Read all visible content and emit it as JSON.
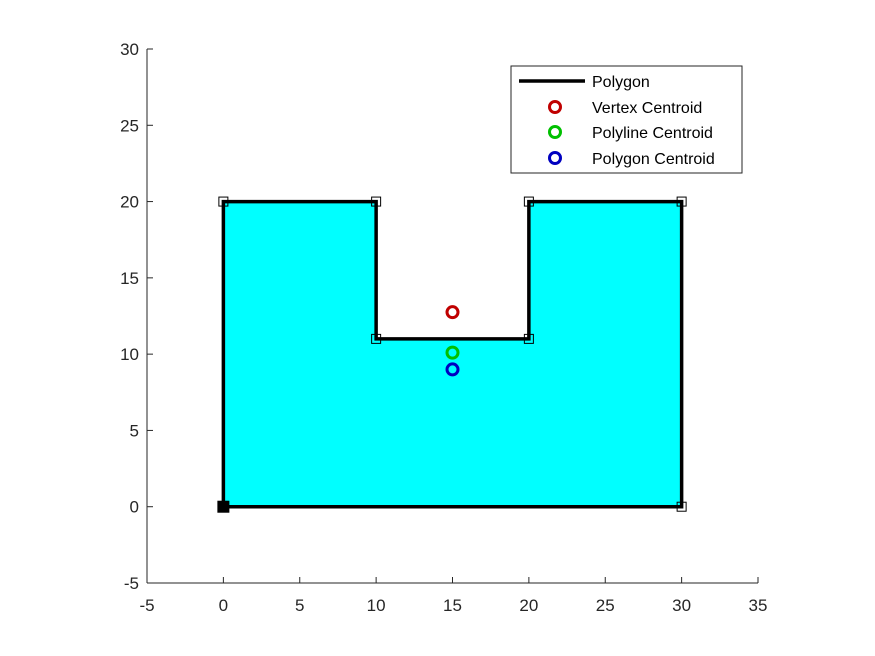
{
  "chart_data": {
    "type": "line",
    "title": "",
    "xlabel": "",
    "ylabel": "",
    "xlim": [
      -5,
      35
    ],
    "ylim": [
      -5,
      30
    ],
    "xticks": [
      -5,
      0,
      5,
      10,
      15,
      20,
      25,
      30,
      35
    ],
    "yticks": [
      -5,
      0,
      5,
      10,
      15,
      20,
      25,
      30
    ],
    "xtick_labels": [
      "-5",
      "0",
      "5",
      "10",
      "15",
      "20",
      "25",
      "30",
      "35"
    ],
    "ytick_labels": [
      "-5",
      "0",
      "5",
      "10",
      "15",
      "20",
      "25",
      "30"
    ],
    "grid": false,
    "legend_position": "top-right",
    "polygon": {
      "name": "Polygon",
      "fill_color": "#00ffff",
      "line_color": "#000000",
      "x": [
        0,
        0,
        10,
        10,
        20,
        20,
        30,
        30,
        0
      ],
      "y": [
        0,
        20,
        20,
        11,
        11,
        20,
        20,
        0,
        0
      ],
      "start_vertex": [
        0,
        0
      ]
    },
    "series": [
      {
        "name": "Vertex Centroid",
        "color": "#c00000",
        "x": [
          15
        ],
        "y": [
          12.75
        ]
      },
      {
        "name": "Polyline Centroid",
        "color": "#00c000",
        "x": [
          15
        ],
        "y": [
          10.1
        ]
      },
      {
        "name": "Polygon Centroid",
        "color": "#0000c0",
        "x": [
          15
        ],
        "y": [
          9.0
        ]
      }
    ]
  }
}
